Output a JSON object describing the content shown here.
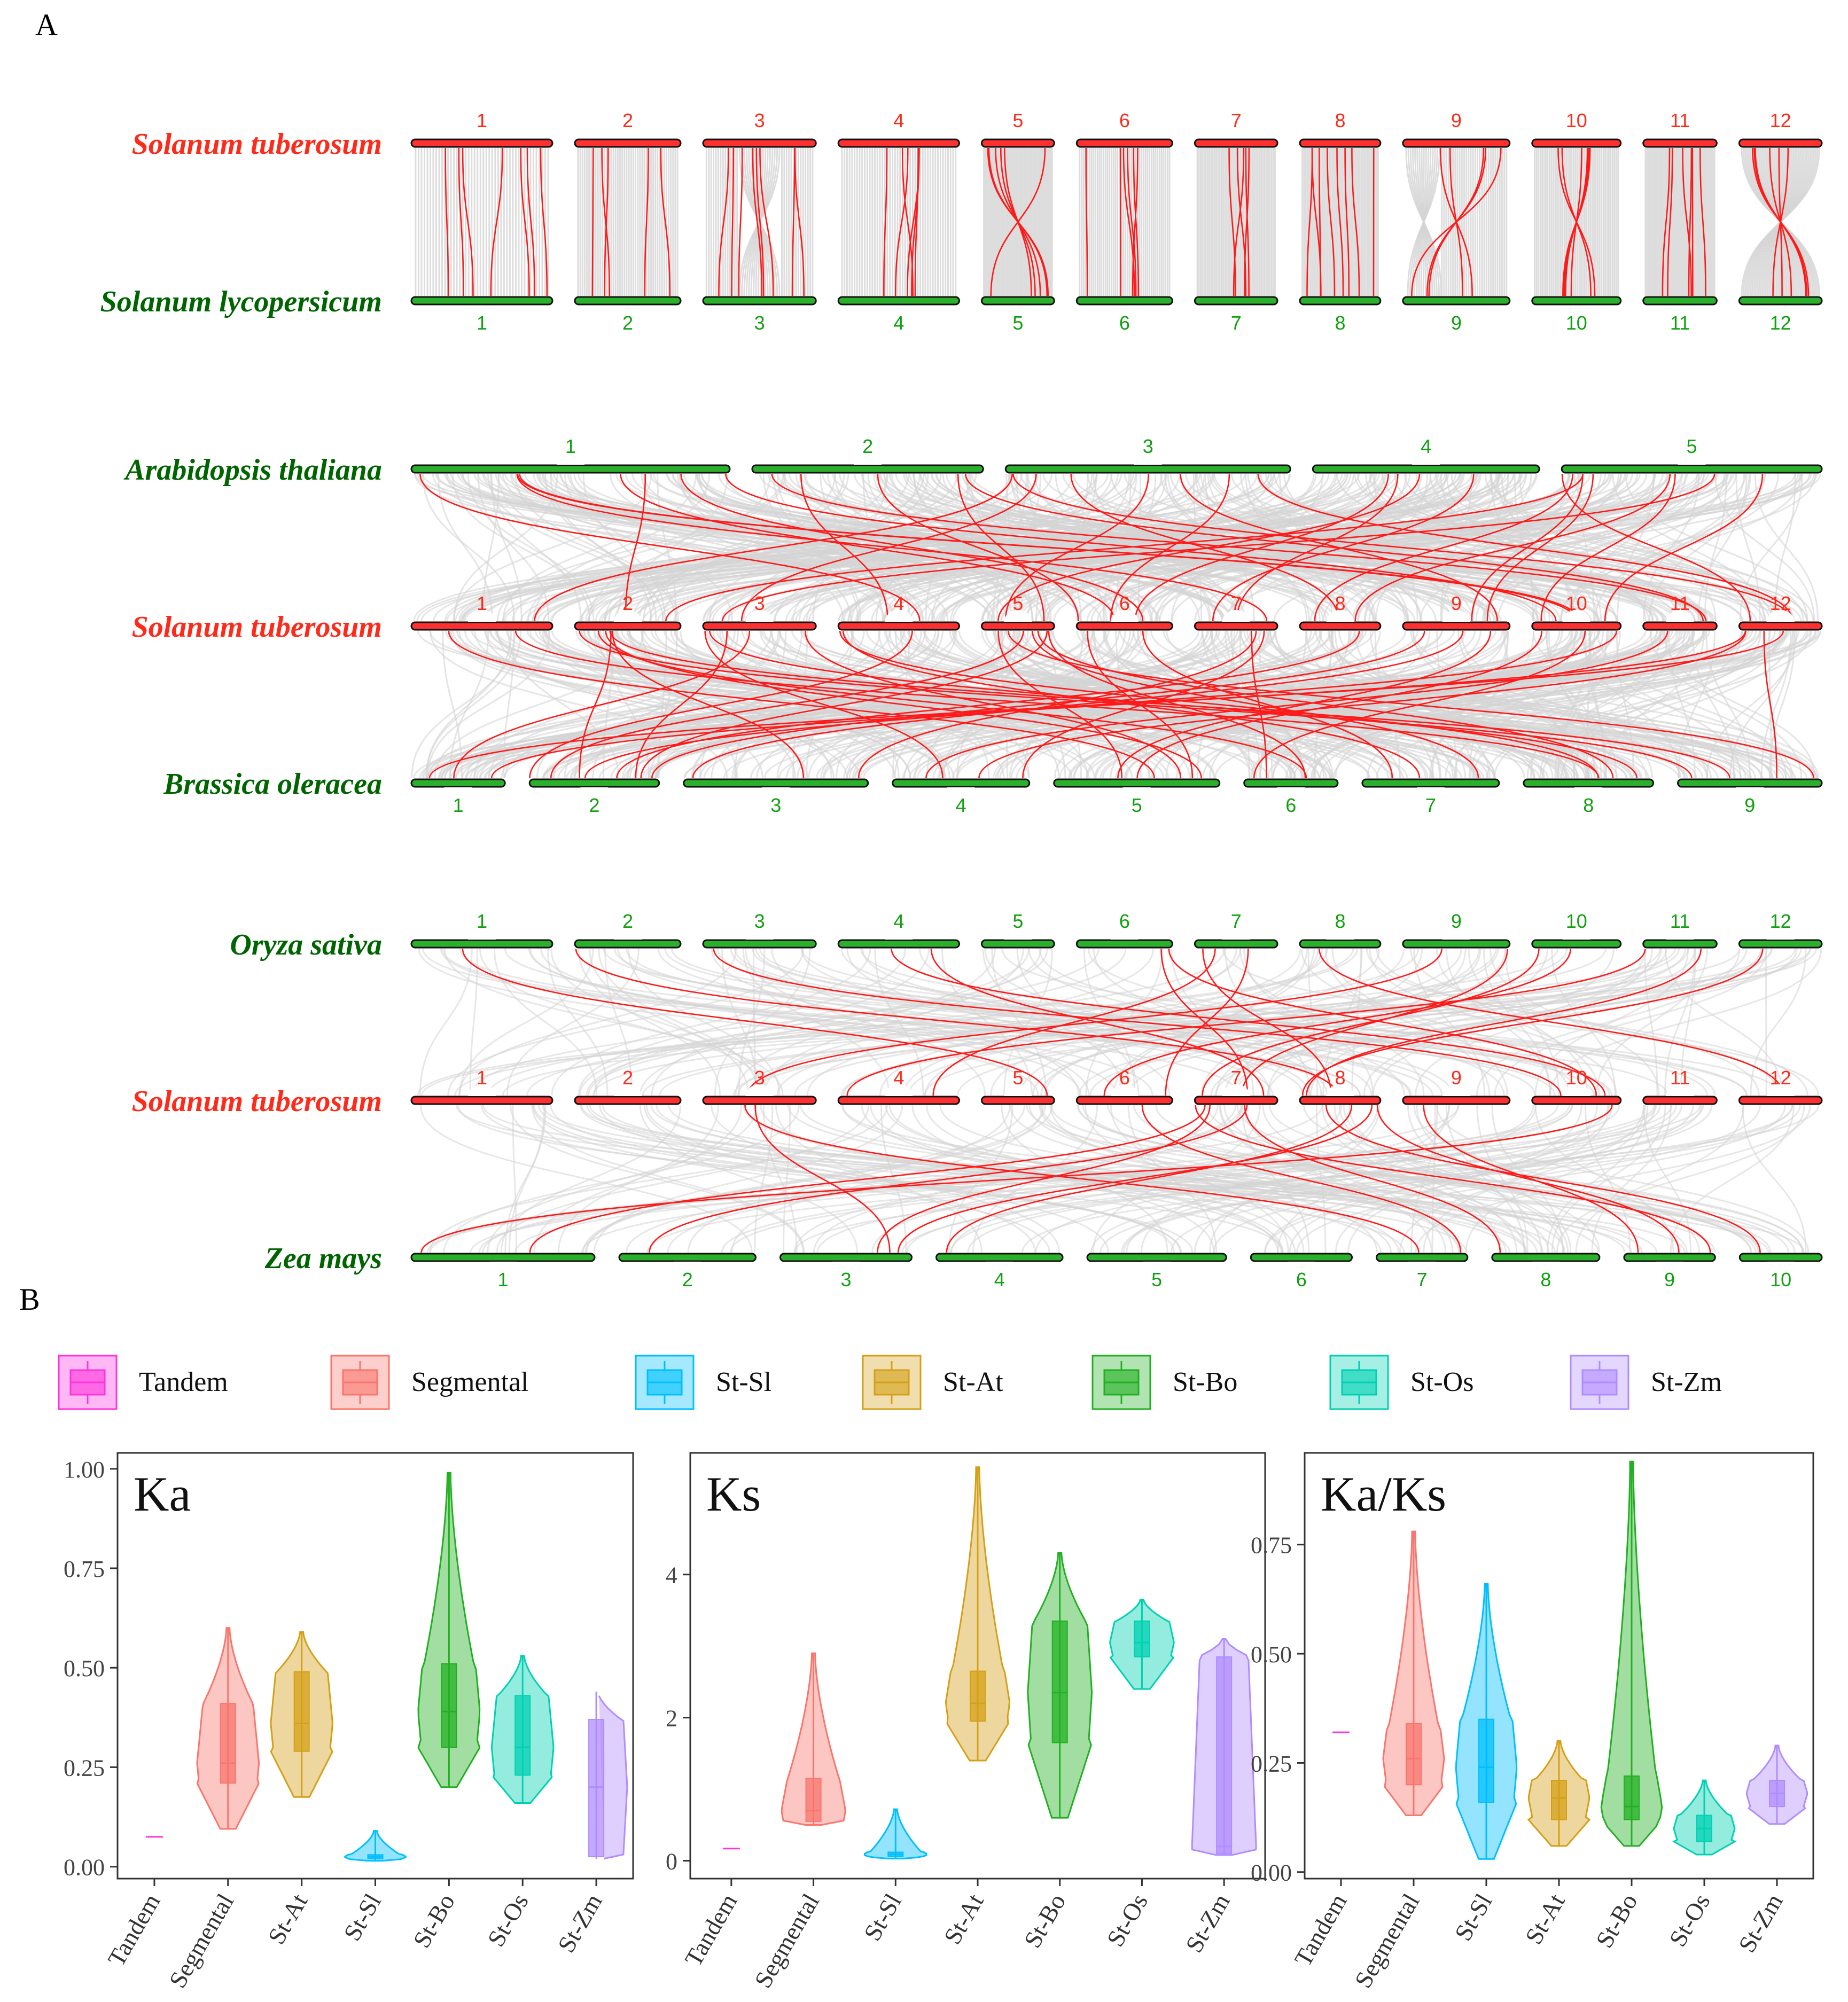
{
  "panel_labels": {
    "a": "A",
    "b": "B"
  },
  "colors": {
    "potato": "#ff2a1a",
    "other": "#006400",
    "chrom_num_green": "#10a010",
    "link_red": "#ff1a1a",
    "link_gray": "#d4d4d4",
    "bar_red": "#ff3030",
    "bar_green": "#2bb02b"
  },
  "chart_data": [
    {
      "type": "synteny",
      "panel": "A",
      "rows": [
        {
          "species": "Solanum tuberosum",
          "is_reference": true,
          "chromosomes": [
            "1",
            "2",
            "3",
            "4",
            "5",
            "6",
            "7",
            "8",
            "9",
            "10",
            "11",
            "12"
          ]
        },
        {
          "species": "Solanum lycopersicum",
          "is_reference": false,
          "chromosomes": [
            "1",
            "2",
            "3",
            "4",
            "5",
            "6",
            "7",
            "8",
            "9",
            "10",
            "11",
            "12"
          ]
        },
        {
          "species": "Arabidopsis thaliana",
          "is_reference": false,
          "chromosomes": [
            "1",
            "2",
            "3",
            "4",
            "5"
          ]
        },
        {
          "species": "Solanum tuberosum",
          "is_reference": true,
          "chromosomes": [
            "1",
            "2",
            "3",
            "4",
            "5",
            "6",
            "7",
            "8",
            "9",
            "10",
            "11",
            "12"
          ]
        },
        {
          "species": "Brassica oleracea",
          "is_reference": false,
          "chromosomes": [
            "1",
            "2",
            "3",
            "4",
            "5",
            "6",
            "7",
            "8",
            "9"
          ]
        },
        {
          "species": "Oryza sativa",
          "is_reference": false,
          "chromosomes": [
            "1",
            "2",
            "3",
            "4",
            "5",
            "6",
            "7",
            "8",
            "9",
            "10",
            "11",
            "12"
          ]
        },
        {
          "species": "Solanum tuberosum",
          "is_reference": true,
          "chromosomes": [
            "1",
            "2",
            "3",
            "4",
            "5",
            "6",
            "7",
            "8",
            "9",
            "10",
            "11",
            "12"
          ]
        },
        {
          "species": "Zea mays",
          "is_reference": false,
          "chromosomes": [
            "1",
            "2",
            "3",
            "4",
            "5",
            "6",
            "7",
            "8",
            "9",
            "10"
          ]
        }
      ],
      "comparisons": [
        "St-Sl",
        "At-St",
        "St-Bo",
        "Os-St",
        "St-Zm"
      ]
    },
    {
      "type": "violin",
      "panel": "B",
      "legend": [
        "Tandem",
        "Segmental",
        "St-Sl",
        "St-At",
        "St-Bo",
        "St-Os",
        "St-Zm"
      ],
      "series_colors": {
        "Tandem": "#ff33dd",
        "Segmental": "#f8766d",
        "St-Sl": "#00bfff",
        "St-At": "#d4a017",
        "St-Bo": "#22b022",
        "St-Os": "#00d1b2",
        "St-Zm": "#b08cff"
      },
      "facets": [
        {
          "title": "Ka",
          "ylim": [
            -0.03,
            1.04
          ],
          "yticks": [
            0,
            0.25,
            0.5,
            0.75,
            1.0
          ],
          "ytick_labels": [
            "0.00",
            "0.25",
            "0.50",
            "0.75",
            "1.00"
          ],
          "categories": [
            "Tandem",
            "Segmental",
            "St-At",
            "St-Sl",
            "St-Bo",
            "St-Os",
            "St-Zm"
          ],
          "groups": [
            {
              "name": "Tandem",
              "min": 0.075,
              "q1": 0.075,
              "median": 0.075,
              "q3": 0.075,
              "max": 0.075
            },
            {
              "name": "Segmental",
              "min": 0.095,
              "q1": 0.21,
              "median": 0.26,
              "q3": 0.41,
              "max": 0.6
            },
            {
              "name": "St-At",
              "min": 0.175,
              "q1": 0.29,
              "median": 0.36,
              "q3": 0.49,
              "max": 0.59
            },
            {
              "name": "St-Sl",
              "min": 0.015,
              "q1": 0.02,
              "median": 0.025,
              "q3": 0.03,
              "max": 0.09
            },
            {
              "name": "St-Bo",
              "min": 0.2,
              "q1": 0.3,
              "median": 0.39,
              "q3": 0.51,
              "max": 0.99
            },
            {
              "name": "St-Os",
              "min": 0.16,
              "q1": 0.23,
              "median": 0.3,
              "q3": 0.43,
              "max": 0.53
            },
            {
              "name": "St-Zm",
              "min": 0.02,
              "q1": 0.025,
              "median": 0.2,
              "q3": 0.37,
              "max": 0.44
            }
          ]
        },
        {
          "title": "Ks",
          "ylim": [
            -0.25,
            5.7
          ],
          "yticks": [
            0,
            2,
            4
          ],
          "ytick_labels": [
            "0",
            "2",
            "4"
          ],
          "categories": [
            "Tandem",
            "Segmental",
            "St-Sl",
            "St-At",
            "St-Bo",
            "St-Os",
            "St-Zm"
          ],
          "groups": [
            {
              "name": "Tandem",
              "min": 0.17,
              "q1": 0.17,
              "median": 0.17,
              "q3": 0.17,
              "max": 0.17
            },
            {
              "name": "Segmental",
              "min": 0.5,
              "q1": 0.55,
              "median": 0.7,
              "q3": 1.15,
              "max": 2.9
            },
            {
              "name": "St-Sl",
              "min": 0.03,
              "q1": 0.06,
              "median": 0.09,
              "q3": 0.12,
              "max": 0.72
            },
            {
              "name": "St-At",
              "min": 1.4,
              "q1": 1.95,
              "median": 2.2,
              "q3": 2.65,
              "max": 5.5
            },
            {
              "name": "St-Bo",
              "min": 0.6,
              "q1": 1.65,
              "median": 2.35,
              "q3": 3.35,
              "max": 4.3
            },
            {
              "name": "St-Os",
              "min": 2.4,
              "q1": 2.85,
              "median": 3.05,
              "q3": 3.35,
              "max": 3.65
            },
            {
              "name": "St-Zm",
              "min": 0.08,
              "q1": 0.1,
              "median": 0.2,
              "q3": 2.85,
              "max": 3.1
            }
          ]
        },
        {
          "title": "Ka/Ks",
          "ylim": [
            -0.015,
            0.96
          ],
          "yticks": [
            0,
            0.25,
            0.5,
            0.75
          ],
          "ytick_labels": [
            "0.00",
            "0.25",
            "0.50",
            "0.75"
          ],
          "categories": [
            "Tandem",
            "Segmental",
            "St-Sl",
            "St-At",
            "St-Bo",
            "St-Os",
            "St-Zm"
          ],
          "groups": [
            {
              "name": "Tandem",
              "min": 0.32,
              "q1": 0.32,
              "median": 0.32,
              "q3": 0.32,
              "max": 0.32
            },
            {
              "name": "Segmental",
              "min": 0.13,
              "q1": 0.2,
              "median": 0.26,
              "q3": 0.34,
              "max": 0.78
            },
            {
              "name": "St-Sl",
              "min": 0.03,
              "q1": 0.16,
              "median": 0.24,
              "q3": 0.35,
              "max": 0.66
            },
            {
              "name": "St-At",
              "min": 0.06,
              "q1": 0.12,
              "median": 0.17,
              "q3": 0.21,
              "max": 0.3
            },
            {
              "name": "St-Bo",
              "min": 0.06,
              "q1": 0.12,
              "median": 0.15,
              "q3": 0.22,
              "max": 0.94
            },
            {
              "name": "St-Os",
              "min": 0.04,
              "q1": 0.07,
              "median": 0.1,
              "q3": 0.13,
              "max": 0.21
            },
            {
              "name": "St-Zm",
              "min": 0.11,
              "q1": 0.15,
              "median": 0.18,
              "q3": 0.21,
              "max": 0.29
            }
          ]
        }
      ]
    }
  ]
}
